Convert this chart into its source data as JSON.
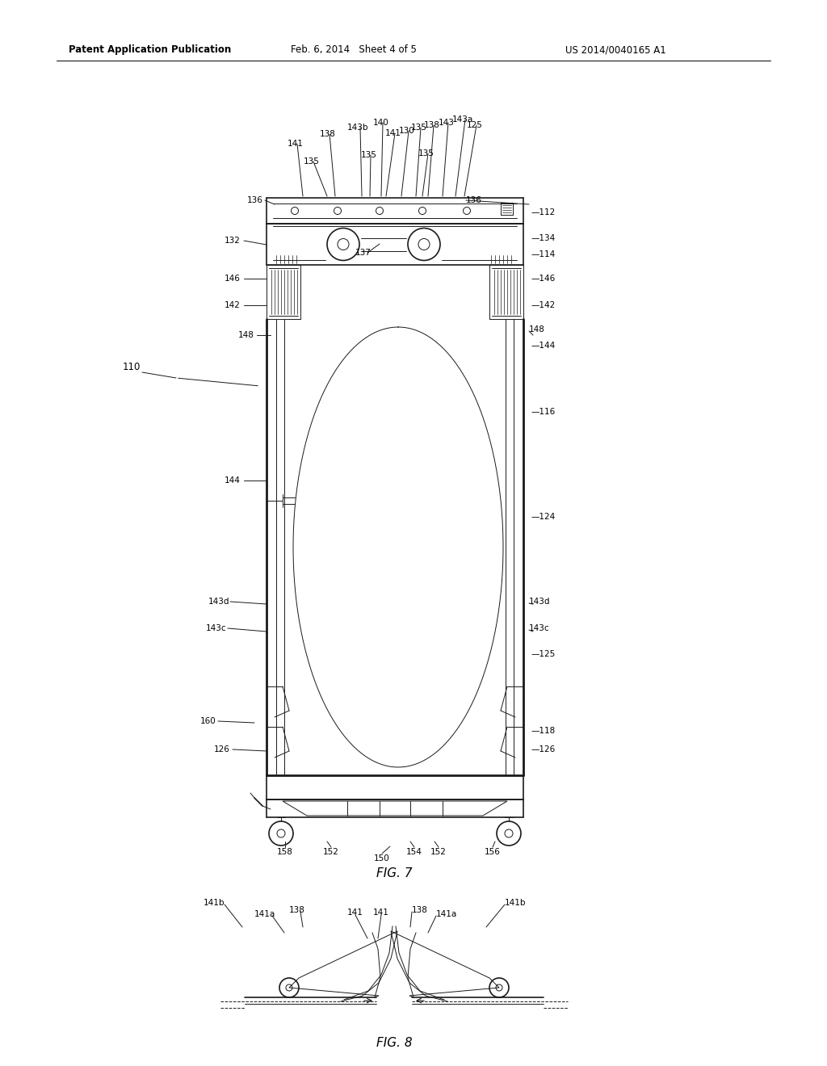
{
  "bg_color": "#ffffff",
  "line_color": "#1a1a1a",
  "header_left": "Patent Application Publication",
  "header_mid": "Feb. 6, 2014   Sheet 4 of 5",
  "header_right": "US 2014/0040165 A1",
  "fig7_label": "FIG. 7",
  "fig8_label": "FIG. 8"
}
